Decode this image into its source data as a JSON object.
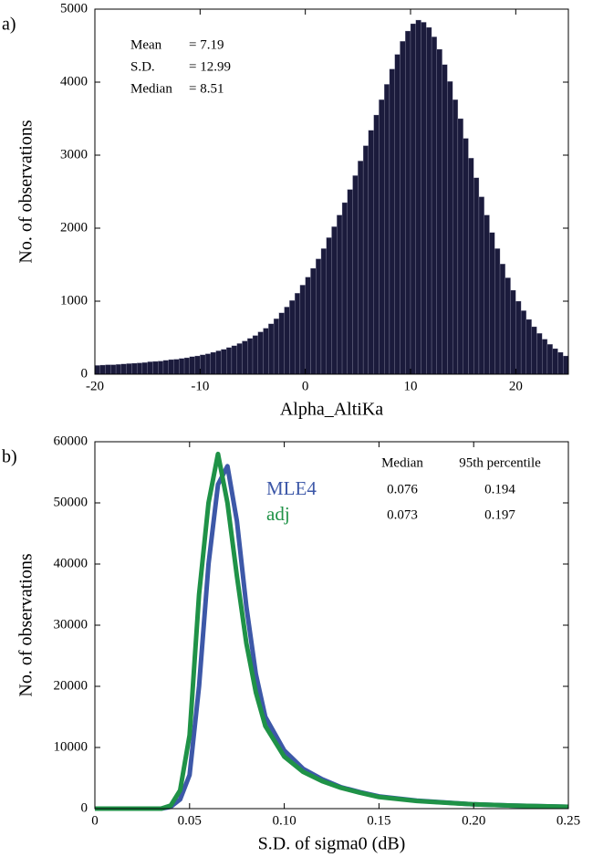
{
  "chart_data": [
    {
      "type": "histogram",
      "panel_label": "a)",
      "xlabel": "Alpha_AltiKa",
      "ylabel": "No. of observations",
      "color": "#1b1b3c",
      "bins": [
        -20,
        -19.5,
        -19,
        -18.5,
        -18,
        -17.5,
        -17,
        -16.5,
        -16,
        -15.5,
        -15,
        -14.5,
        -14,
        -13.5,
        -13,
        -12.5,
        -12,
        -11.5,
        -11,
        -10.5,
        -10,
        -9.5,
        -9,
        -8.5,
        -8,
        -7.5,
        -7,
        -6.5,
        -6,
        -5.5,
        -5,
        -4.5,
        -4,
        -3.5,
        -3,
        -2.5,
        -2,
        -1.5,
        -1,
        -0.5,
        0,
        0.5,
        1,
        1.5,
        2,
        2.5,
        3,
        3.5,
        4,
        4.5,
        5,
        5.5,
        6,
        6.5,
        7,
        7.5,
        8,
        8.5,
        9,
        9.5,
        10,
        10.5,
        11,
        11.5,
        12,
        12.5,
        13,
        13.5,
        14,
        14.5,
        15,
        15.5,
        16,
        16.5,
        17,
        17.5,
        18,
        18.5,
        19,
        19.5,
        20,
        20.5,
        21,
        21.5,
        22,
        22.5,
        23,
        23.5,
        24,
        24.5,
        25
      ],
      "values": [
        120,
        125,
        130,
        130,
        135,
        140,
        145,
        150,
        155,
        160,
        170,
        175,
        180,
        190,
        200,
        205,
        215,
        225,
        240,
        250,
        265,
        280,
        300,
        320,
        340,
        365,
        390,
        420,
        455,
        490,
        530,
        580,
        630,
        690,
        760,
        840,
        920,
        1010,
        1110,
        1220,
        1330,
        1450,
        1580,
        1720,
        1870,
        2020,
        2180,
        2350,
        2530,
        2720,
        2920,
        3130,
        3340,
        3550,
        3760,
        3970,
        4180,
        4380,
        4560,
        4700,
        4800,
        4850,
        4820,
        4750,
        4620,
        4450,
        4240,
        4010,
        3760,
        3500,
        3230,
        2960,
        2690,
        2430,
        2180,
        1940,
        1720,
        1510,
        1320,
        1150,
        1000,
        870,
        750,
        650,
        560,
        480,
        410,
        350,
        300,
        250
      ],
      "xlim": [
        -20,
        25
      ],
      "xticks": [
        -20,
        -10,
        0,
        10,
        20
      ],
      "ylim": [
        0,
        5000
      ],
      "yticks": [
        0,
        1000,
        2000,
        3000,
        4000,
        5000
      ],
      "annotations": [
        {
          "label": "Mean",
          "text": "= 7.19"
        },
        {
          "label": "S.D.",
          "text": "= 12.99"
        },
        {
          "label": "Median",
          "text": "= 8.51"
        }
      ]
    },
    {
      "type": "line",
      "panel_label": "b)",
      "xlabel": "S.D. of sigma0 (dB)",
      "ylabel": "No. of observations",
      "x": [
        0,
        0.01,
        0.02,
        0.03,
        0.035,
        0.04,
        0.045,
        0.05,
        0.055,
        0.06,
        0.065,
        0.07,
        0.075,
        0.08,
        0.085,
        0.09,
        0.1,
        0.11,
        0.12,
        0.13,
        0.14,
        0.15,
        0.17,
        0.2,
        0.22,
        0.25
      ],
      "series": [
        {
          "name": "MLE4",
          "color": "#3d58a8",
          "values": [
            0,
            0,
            0,
            0,
            0,
            300,
            1500,
            5500,
            20000,
            40000,
            53000,
            56000,
            47000,
            33000,
            22000,
            15000,
            9500,
            6500,
            4800,
            3500,
            2700,
            2000,
            1300,
            700,
            500,
            300
          ]
        },
        {
          "name": "adj",
          "color": "#1f9247",
          "values": [
            0,
            0,
            0,
            0,
            0,
            500,
            3000,
            12000,
            35000,
            50000,
            58000,
            50000,
            38000,
            27000,
            19000,
            13500,
            8500,
            6000,
            4500,
            3400,
            2600,
            1900,
            1250,
            700,
            500,
            300
          ]
        }
      ],
      "xlim": [
        0,
        0.25
      ],
      "xticks": [
        0,
        0.05,
        {
          "value": 0.1,
          "label": "0.10"
        },
        0.15,
        {
          "value": 0.2,
          "label": "0.20"
        },
        0.25
      ],
      "ylim": [
        0,
        60000
      ],
      "yticks": [
        0,
        10000,
        20000,
        30000,
        40000,
        50000,
        60000
      ],
      "table": {
        "columns": [
          "Median",
          "95th percentile"
        ],
        "rows": [
          [
            0.076,
            0.194
          ],
          [
            0.073,
            0.197
          ]
        ]
      }
    }
  ]
}
